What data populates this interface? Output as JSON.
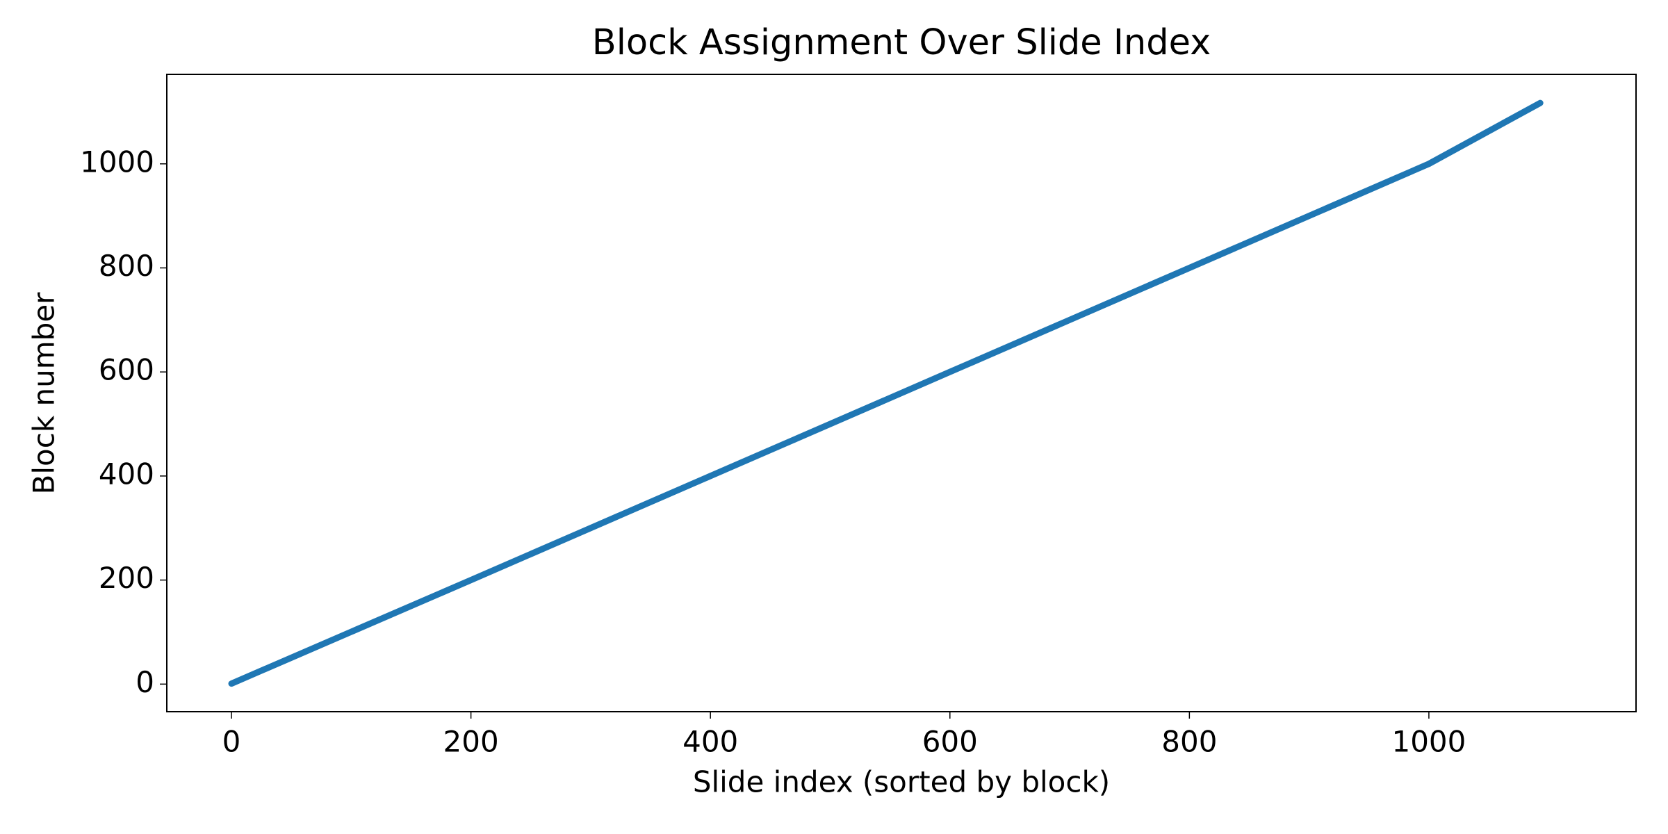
{
  "chart_data": {
    "type": "line",
    "title": "Block Assignment Over Slide Index",
    "xlabel": "Slide index (sorted by block)",
    "ylabel": "Block number",
    "series": [
      {
        "color": "#1f77b4",
        "x": [
          0,
          200,
          400,
          600,
          800,
          1000,
          1093
        ],
        "values": [
          1,
          200,
          400,
          600,
          800,
          1000,
          1117
        ]
      }
    ],
    "xlim": [
      -54,
      1173
    ],
    "ylim": [
      -53,
      1172
    ],
    "xticks": [
      0,
      200,
      400,
      600,
      800,
      1000
    ],
    "yticks": [
      0,
      200,
      400,
      600,
      800,
      1000
    ],
    "grid": false
  }
}
